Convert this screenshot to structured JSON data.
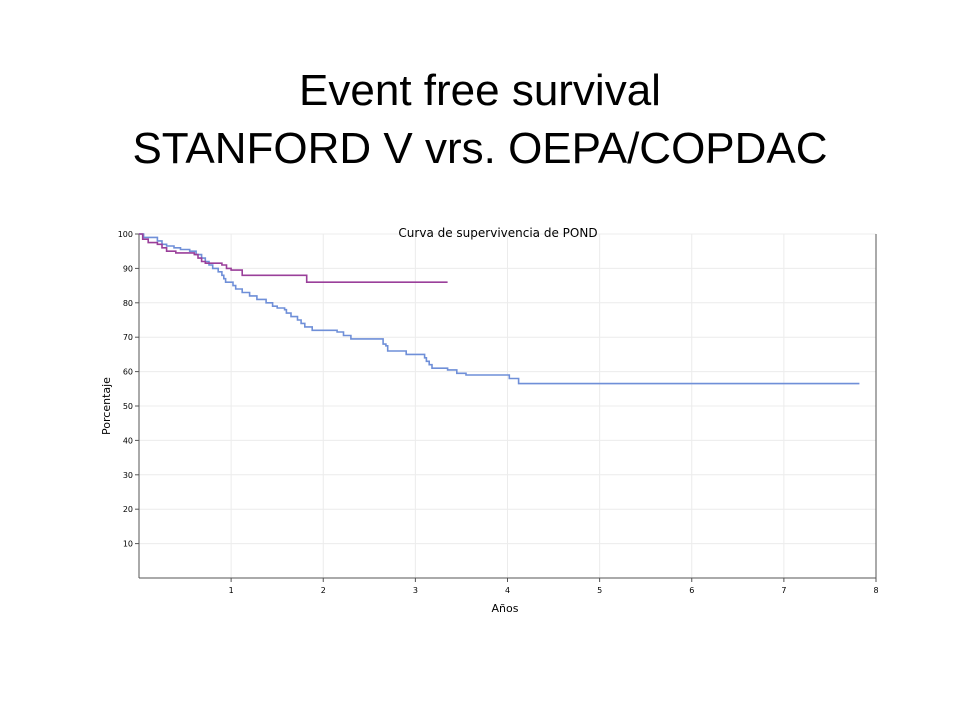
{
  "slide": {
    "title_line1": "Event free survival",
    "title_line2": "STANFORD V vrs. OEPA/COPDAC"
  },
  "colors": {
    "series_blue": "#6f8fd8",
    "series_purple": "#9a3f9a",
    "grid": "#ececec",
    "axis": "#555555",
    "background": "#ffffff"
  },
  "chart_data": {
    "type": "line",
    "step": true,
    "title": "Curva de supervivencia de POND",
    "xlabel": "Años",
    "ylabel": "Porcentaje",
    "xlim": [
      0,
      8
    ],
    "ylim": [
      0,
      100
    ],
    "x_ticks": [
      1,
      2,
      3,
      4,
      5,
      6,
      7,
      8
    ],
    "y_ticks": [
      10,
      20,
      30,
      40,
      50,
      60,
      70,
      80,
      90,
      100
    ],
    "grid": true,
    "legend": "none",
    "series": [
      {
        "color": "#6f8fd8",
        "points": [
          [
            0,
            100
          ],
          [
            0.05,
            99
          ],
          [
            0.2,
            98
          ],
          [
            0.25,
            97
          ],
          [
            0.3,
            96.5
          ],
          [
            0.38,
            96
          ],
          [
            0.45,
            95.5
          ],
          [
            0.55,
            95
          ],
          [
            0.62,
            94
          ],
          [
            0.68,
            93
          ],
          [
            0.72,
            92
          ],
          [
            0.76,
            91
          ],
          [
            0.8,
            90
          ],
          [
            0.86,
            89
          ],
          [
            0.9,
            88
          ],
          [
            0.92,
            87
          ],
          [
            0.94,
            86
          ],
          [
            1.02,
            85
          ],
          [
            1.05,
            84
          ],
          [
            1.12,
            83
          ],
          [
            1.2,
            82
          ],
          [
            1.28,
            81
          ],
          [
            1.38,
            80
          ],
          [
            1.45,
            79
          ],
          [
            1.5,
            78.5
          ],
          [
            1.58,
            78
          ],
          [
            1.6,
            77
          ],
          [
            1.65,
            76
          ],
          [
            1.72,
            75
          ],
          [
            1.76,
            74
          ],
          [
            1.8,
            73
          ],
          [
            1.88,
            72
          ],
          [
            1.98,
            72
          ],
          [
            2.15,
            71.5
          ],
          [
            2.22,
            70.5
          ],
          [
            2.3,
            69.5
          ],
          [
            2.62,
            69.5
          ],
          [
            2.65,
            68
          ],
          [
            2.68,
            67.5
          ],
          [
            2.7,
            66
          ],
          [
            2.85,
            66
          ],
          [
            2.9,
            65
          ],
          [
            3.05,
            65
          ],
          [
            3.1,
            64
          ],
          [
            3.12,
            63
          ],
          [
            3.15,
            62
          ],
          [
            3.18,
            61
          ],
          [
            3.35,
            60.5
          ],
          [
            3.45,
            59.5
          ],
          [
            3.55,
            59
          ],
          [
            3.95,
            59
          ],
          [
            4.02,
            58
          ],
          [
            4.12,
            56.5
          ],
          [
            7.82,
            56.5
          ]
        ]
      },
      {
        "color": "#9a3f9a",
        "points": [
          [
            0,
            100
          ],
          [
            0.04,
            98.5
          ],
          [
            0.1,
            97.5
          ],
          [
            0.2,
            97
          ],
          [
            0.25,
            96
          ],
          [
            0.3,
            95
          ],
          [
            0.4,
            94.5
          ],
          [
            0.6,
            94
          ],
          [
            0.64,
            93
          ],
          [
            0.68,
            92
          ],
          [
            0.72,
            91.5
          ],
          [
            0.9,
            91
          ],
          [
            0.95,
            90
          ],
          [
            1.0,
            89.5
          ],
          [
            1.12,
            88
          ],
          [
            1.8,
            88
          ],
          [
            1.82,
            86
          ],
          [
            3.35,
            86
          ]
        ]
      }
    ]
  }
}
